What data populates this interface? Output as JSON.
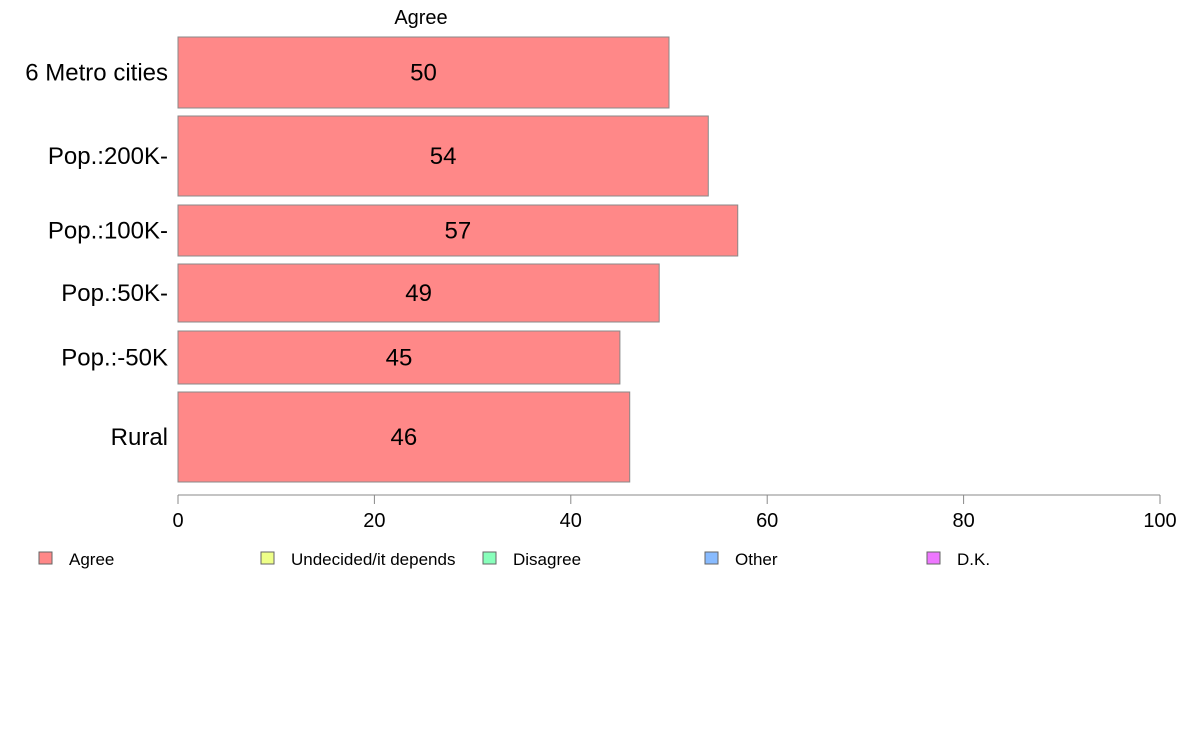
{
  "chart_data": {
    "type": "bar",
    "orientation": "horizontal",
    "panel_title": "Agree",
    "categories": [
      "6 Metro cities",
      "Pop.:200K-",
      "Pop.:100K-",
      "Pop.:50K-",
      "Pop.:-50K",
      "Rural"
    ],
    "series": [
      {
        "name": "Agree",
        "values": [
          50,
          54,
          57,
          49,
          45,
          46
        ],
        "color": "#ff8888"
      }
    ],
    "xlim": [
      0,
      100
    ],
    "xticks": [
      "0",
      "20",
      "40",
      "60",
      "80",
      "100"
    ],
    "legend_placement": "bottom",
    "legend": [
      {
        "label": "Agree",
        "color": "#ff8888"
      },
      {
        "label": "Undecided/it depends",
        "color": "#eeff88"
      },
      {
        "label": "Disagree",
        "color": "#88ffbb"
      },
      {
        "label": "Other",
        "color": "#88bbff"
      },
      {
        "label": "D.K.",
        "color": "#ee77ff"
      }
    ]
  }
}
